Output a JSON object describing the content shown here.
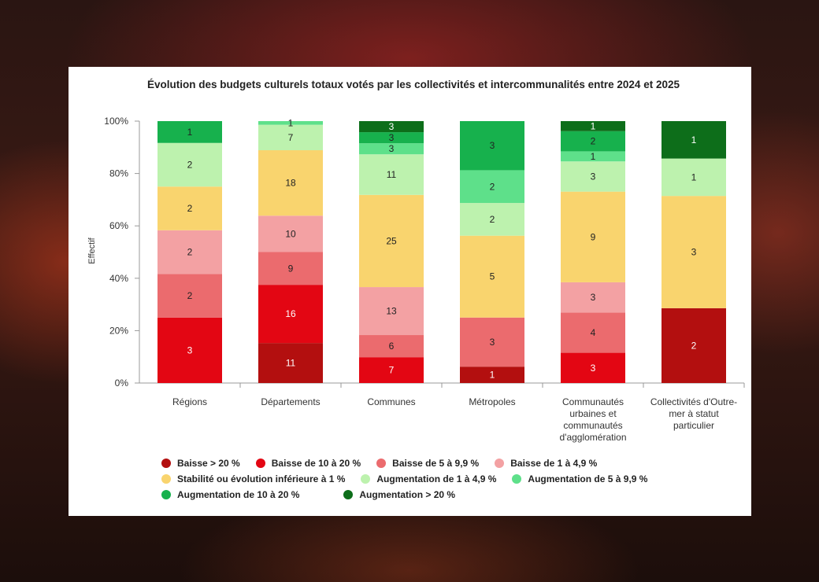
{
  "chart_data": {
    "type": "bar",
    "stacked": true,
    "normalized_percent": true,
    "title": "Évolution des budgets culturels totaux votés par les collectivités et intercommunalités entre 2024 et 2025",
    "xlabel": "",
    "ylabel": "Effectif",
    "ylim": [
      0,
      100
    ],
    "yticks": [
      "0%",
      "20%",
      "40%",
      "60%",
      "80%",
      "100%"
    ],
    "categories": [
      [
        "Régions"
      ],
      [
        "Départements"
      ],
      [
        "Communes"
      ],
      [
        "Métropoles"
      ],
      [
        "Communautés",
        "urbaines et",
        "communautés",
        "d'agglomération"
      ],
      [
        "Collectivités d'Outre-",
        "mer à statut",
        "particulier"
      ]
    ],
    "series": [
      {
        "name": "Baisse > 20 %",
        "color": "#b30f0f",
        "label_color": "#ffffff",
        "values": [
          0,
          11,
          0,
          1,
          0,
          2
        ]
      },
      {
        "name": "Baisse de 10 à 20 %",
        "color": "#e30613",
        "label_color": "#ffffff",
        "values": [
          3,
          16,
          7,
          0,
          3,
          0
        ]
      },
      {
        "name": "Baisse de 5 à 9,9 %",
        "color": "#eb6b6e",
        "label_color": "#222222",
        "values": [
          2,
          9,
          6,
          3,
          4,
          0
        ]
      },
      {
        "name": "Baisse de 1 à 4,9 %",
        "color": "#f3a1a3",
        "label_color": "#222222",
        "values": [
          2,
          10,
          13,
          0,
          3,
          0
        ]
      },
      {
        "name": "Stabilité ou évolution inférieure à 1 %",
        "color": "#f9d46e",
        "label_color": "#222222",
        "values": [
          2,
          18,
          25,
          5,
          9,
          3
        ]
      },
      {
        "name": "Augmentation de 1 à 4,9 %",
        "color": "#bdf2ae",
        "label_color": "#222222",
        "values": [
          2,
          7,
          11,
          2,
          3,
          1
        ]
      },
      {
        "name": "Augmentation de 5 à 9,9 %",
        "color": "#5ee08a",
        "label_color": "#222222",
        "values": [
          0,
          1,
          3,
          2,
          1,
          0
        ]
      },
      {
        "name": "Augmentation de 10 à 20 %",
        "color": "#17b14d",
        "label_color": "#222222",
        "values": [
          1,
          0,
          3,
          3,
          2,
          0
        ]
      },
      {
        "name": "Augmentation > 20 %",
        "color": "#0d6e1a",
        "label_color": "#ffffff",
        "values": [
          0,
          0,
          3,
          0,
          1,
          1
        ]
      }
    ],
    "legend_position": "bottom",
    "grid": false
  }
}
